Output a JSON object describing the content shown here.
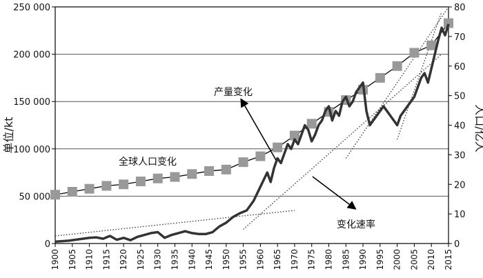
{
  "chart_data": {
    "type": "line",
    "title": "",
    "x": {
      "range": [
        1900,
        2015
      ],
      "ticks": [
        1900,
        1905,
        1910,
        1915,
        1920,
        1925,
        1930,
        1935,
        1940,
        1945,
        1950,
        1955,
        1960,
        1965,
        1970,
        1975,
        1980,
        1985,
        1990,
        1995,
        2000,
        2005,
        2010,
        2015
      ]
    },
    "y_left": {
      "label": "单位/kt",
      "range": [
        0,
        250000
      ],
      "ticks": [
        0,
        50000,
        100000,
        150000,
        200000,
        250000
      ],
      "tick_labels": [
        "0",
        "50 000",
        "100 000",
        "150 000",
        "200 000",
        "250 000"
      ]
    },
    "y_right": {
      "label": "人口/亿人",
      "range": [
        0,
        80
      ],
      "ticks": [
        0,
        10,
        20,
        30,
        40,
        50,
        60,
        70,
        80
      ]
    },
    "grid": "horizontal",
    "series": [
      {
        "name": "产量变化",
        "axis": "left",
        "color": "#333333",
        "x": [
          1900,
          1902,
          1904,
          1906,
          1908,
          1910,
          1912,
          1914,
          1916,
          1918,
          1920,
          1922,
          1924,
          1926,
          1928,
          1930,
          1932,
          1934,
          1936,
          1938,
          1940,
          1942,
          1944,
          1946,
          1948,
          1950,
          1952,
          1954,
          1956,
          1958,
          1960,
          1962,
          1963,
          1964,
          1965,
          1966,
          1967,
          1968,
          1969,
          1970,
          1971,
          1972,
          1973,
          1974,
          1975,
          1976,
          1977,
          1978,
          1979,
          1980,
          1981,
          1982,
          1983,
          1984,
          1985,
          1986,
          1987,
          1988,
          1989,
          1990,
          1991,
          1992,
          1993,
          1994,
          1995,
          1996,
          1997,
          1998,
          1999,
          2000,
          2001,
          2002,
          2003,
          2004,
          2005,
          2006,
          2007,
          2008,
          2009,
          2010,
          2011,
          2012,
          2013,
          2014,
          2015
        ],
        "values": [
          2000,
          2500,
          3000,
          4000,
          5000,
          6000,
          6500,
          5000,
          8000,
          4000,
          6000,
          3500,
          7000,
          9000,
          11000,
          12000,
          6000,
          9000,
          11000,
          13000,
          11000,
          10000,
          10000,
          12000,
          18000,
          22000,
          28000,
          32000,
          35000,
          45000,
          60000,
          75000,
          65000,
          80000,
          90000,
          85000,
          95000,
          105000,
          100000,
          110000,
          105000,
          115000,
          125000,
          120000,
          108000,
          115000,
          125000,
          130000,
          140000,
          145000,
          130000,
          140000,
          135000,
          150000,
          155000,
          145000,
          150000,
          160000,
          165000,
          170000,
          140000,
          125000,
          130000,
          135000,
          140000,
          145000,
          140000,
          135000,
          130000,
          125000,
          135000,
          140000,
          145000,
          150000,
          155000,
          165000,
          175000,
          180000,
          170000,
          185000,
          200000,
          215000,
          228000,
          220000,
          232000
        ]
      },
      {
        "name": "全球人口变化",
        "axis": "right",
        "color": "#999999",
        "x": [
          1900,
          1905,
          1910,
          1915,
          1920,
          1925,
          1930,
          1935,
          1940,
          1945,
          1950,
          1955,
          1960,
          1965,
          1970,
          1975,
          1980,
          1985,
          1990,
          1995,
          2000,
          2005,
          2010,
          2015
        ],
        "values": [
          16.5,
          17.5,
          18.5,
          19.5,
          20,
          21,
          22,
          22.5,
          23.5,
          24.5,
          25,
          27.5,
          29.5,
          32.5,
          36.5,
          40.5,
          44.5,
          48.5,
          52,
          56,
          60,
          64.5,
          67,
          74.5
        ]
      }
    ],
    "trend_lines": [
      {
        "x": [
          1900,
          1970
        ],
        "y_left": [
          8000,
          35000
        ]
      },
      {
        "x": [
          1955,
          2013
        ],
        "y_left": [
          15000,
          200000
        ]
      },
      {
        "x": [
          1985,
          2015
        ],
        "y_left": [
          90000,
          250000
        ]
      },
      {
        "x": [
          2000,
          2013
        ],
        "y_left": [
          110000,
          245000
        ]
      }
    ],
    "annotations": [
      {
        "text": "产量变化",
        "arrow_to": [
          1962,
          150000
        ]
      },
      {
        "text": "全球人口变化",
        "arrow_to": null
      },
      {
        "text": "变化速率",
        "arrow_to": [
          1978,
          75000
        ]
      }
    ]
  }
}
